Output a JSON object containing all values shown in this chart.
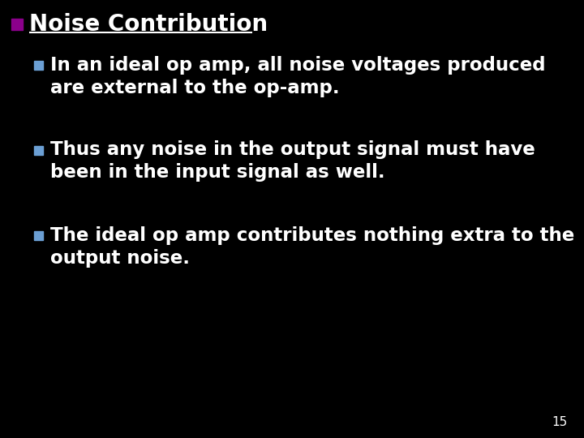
{
  "background_color": "#000000",
  "title": "Noise Contribution",
  "title_color": "#ffffff",
  "title_bullet_color": "#8B008B",
  "bullet_color": "#6B9FD4",
  "title_fontsize": 20,
  "bullet_fontsize": 16.5,
  "page_number": "15",
  "page_number_fontsize": 11,
  "bullets": [
    {
      "line1": "In an ideal op amp, all noise voltages produced",
      "line2": "are external to the op-amp."
    },
    {
      "line1": "Thus any noise in the output signal must have",
      "line2": "been in the input signal as well."
    },
    {
      "line1": "The ideal op amp contributes nothing extra to the",
      "line2": "output noise."
    }
  ]
}
